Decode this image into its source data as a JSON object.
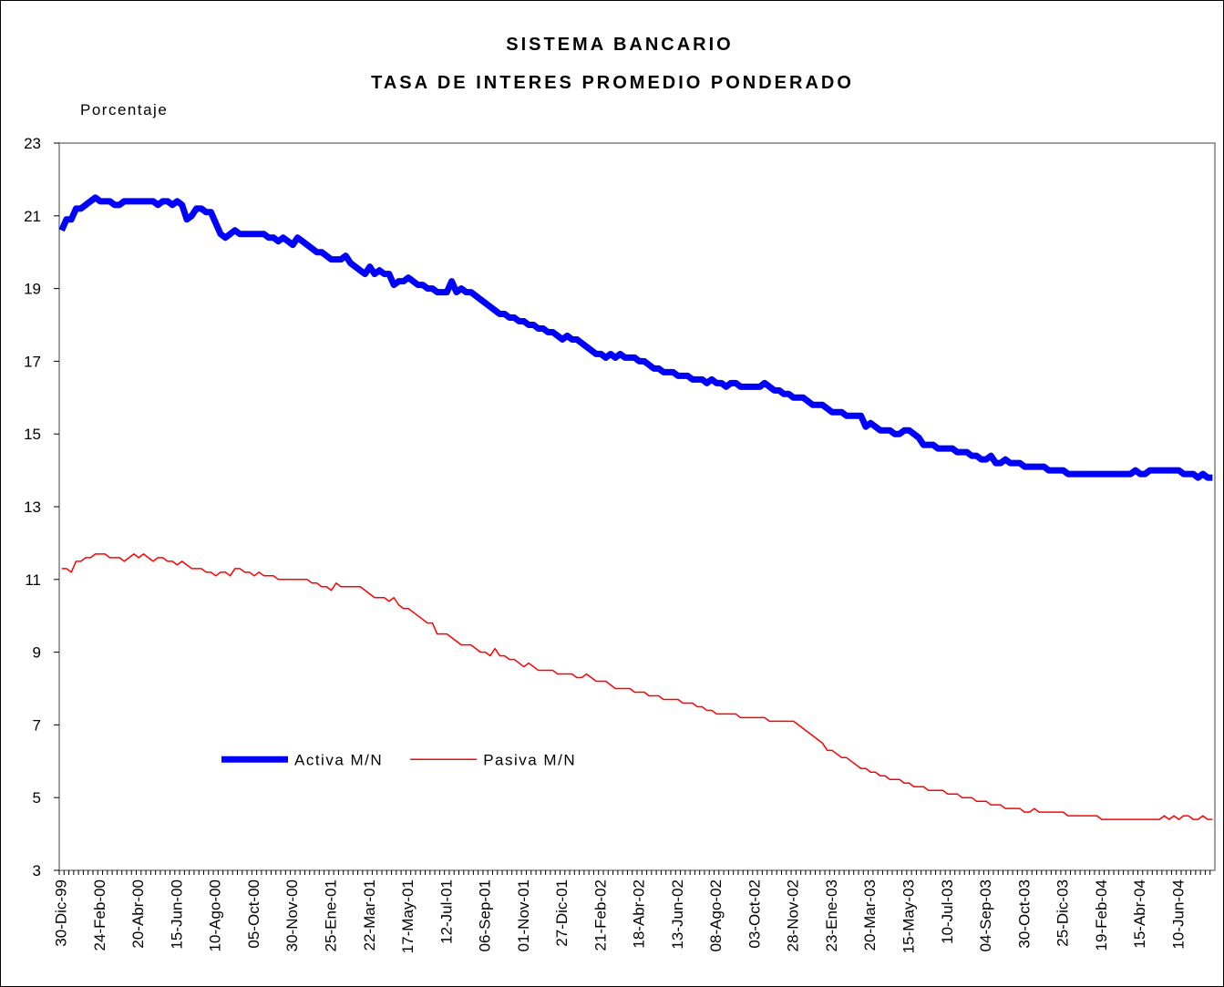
{
  "chart_data": {
    "type": "line",
    "title": "SISTEMA BANCARIO",
    "subtitle": "TASA DE INTERES PROMEDIO PONDERADO",
    "y_label": "Porcentaje",
    "ylim": [
      3,
      23
    ],
    "yticks": [
      3,
      5,
      7,
      9,
      11,
      13,
      15,
      17,
      19,
      21,
      23
    ],
    "legend": "lower-left",
    "categories": [
      "30-Dic-99",
      null,
      null,
      null,
      null,
      null,
      null,
      null,
      "24-Feb-00",
      null,
      null,
      null,
      null,
      null,
      null,
      null,
      "20-Abr-00",
      null,
      null,
      null,
      null,
      null,
      null,
      null,
      "15-Jun-00",
      null,
      null,
      null,
      null,
      null,
      null,
      null,
      "10-Ago-00",
      null,
      null,
      null,
      null,
      null,
      null,
      null,
      "05-Oct-00",
      null,
      null,
      null,
      null,
      null,
      null,
      null,
      "30-Nov-00",
      null,
      null,
      null,
      null,
      null,
      null,
      null,
      "25-Ene-01",
      null,
      null,
      null,
      null,
      null,
      null,
      null,
      "22-Mar-01",
      null,
      null,
      null,
      null,
      null,
      null,
      null,
      "17-May-01",
      null,
      null,
      null,
      null,
      null,
      null,
      null,
      "12-Jul-01",
      null,
      null,
      null,
      null,
      null,
      null,
      null,
      "06-Sep-01",
      null,
      null,
      null,
      null,
      null,
      null,
      null,
      "01-Nov-01",
      null,
      null,
      null,
      null,
      null,
      null,
      null,
      "27-Dic-01",
      null,
      null,
      null,
      null,
      null,
      null,
      null,
      "21-Feb-02",
      null,
      null,
      null,
      null,
      null,
      null,
      null,
      "18-Abr-02",
      null,
      null,
      null,
      null,
      null,
      null,
      null,
      "13-Jun-02",
      null,
      null,
      null,
      null,
      null,
      null,
      null,
      "08-Ago-02",
      null,
      null,
      null,
      null,
      null,
      null,
      null,
      "03-Oct-02",
      null,
      null,
      null,
      null,
      null,
      null,
      null,
      "28-Nov-02",
      null,
      null,
      null,
      null,
      null,
      null,
      null,
      "23-Ene-03",
      null,
      null,
      null,
      null,
      null,
      null,
      null,
      "20-Mar-03",
      null,
      null,
      null,
      null,
      null,
      null,
      null,
      "15-May-03",
      null,
      null,
      null,
      null,
      null,
      null,
      null,
      "10-Jul-03",
      null,
      null,
      null,
      null,
      null,
      null,
      null,
      "04-Sep-03",
      null,
      null,
      null,
      null,
      null,
      null,
      null,
      "30-Oct-03",
      null,
      null,
      null,
      null,
      null,
      null,
      null,
      "25-Dic-03",
      null,
      null,
      null,
      null,
      null,
      null,
      null,
      "19-Feb-04",
      null,
      null,
      null,
      null,
      null,
      null,
      null,
      "15-Abr-04",
      null,
      null,
      null,
      null,
      null,
      null,
      null,
      "10-Jun-04",
      null,
      null,
      null,
      null,
      null,
      null,
      null
    ],
    "series": [
      {
        "name": "Activa M/N",
        "color": "#0000ff",
        "values": [
          20.6,
          20.9,
          20.9,
          21.2,
          21.2,
          21.3,
          21.4,
          21.5,
          21.4,
          21.4,
          21.4,
          21.3,
          21.3,
          21.4,
          21.4,
          21.4,
          21.4,
          21.4,
          21.4,
          21.4,
          21.3,
          21.4,
          21.4,
          21.3,
          21.4,
          21.3,
          20.9,
          21.0,
          21.2,
          21.2,
          21.1,
          21.1,
          20.8,
          20.5,
          20.4,
          20.5,
          20.6,
          20.5,
          20.5,
          20.5,
          20.5,
          20.5,
          20.5,
          20.4,
          20.4,
          20.3,
          20.4,
          20.3,
          20.2,
          20.4,
          20.3,
          20.2,
          20.1,
          20.0,
          20.0,
          19.9,
          19.8,
          19.8,
          19.8,
          19.9,
          19.7,
          19.6,
          19.5,
          19.4,
          19.6,
          19.4,
          19.5,
          19.4,
          19.4,
          19.1,
          19.2,
          19.2,
          19.3,
          19.2,
          19.1,
          19.1,
          19.0,
          19.0,
          18.9,
          18.9,
          18.9,
          19.2,
          18.9,
          19.0,
          18.9,
          18.9,
          18.8,
          18.7,
          18.6,
          18.5,
          18.4,
          18.3,
          18.3,
          18.2,
          18.2,
          18.1,
          18.1,
          18.0,
          18.0,
          17.9,
          17.9,
          17.8,
          17.8,
          17.7,
          17.6,
          17.7,
          17.6,
          17.6,
          17.5,
          17.4,
          17.3,
          17.2,
          17.2,
          17.1,
          17.2,
          17.1,
          17.2,
          17.1,
          17.1,
          17.1,
          17.0,
          17.0,
          16.9,
          16.8,
          16.8,
          16.7,
          16.7,
          16.7,
          16.6,
          16.6,
          16.6,
          16.5,
          16.5,
          16.5,
          16.4,
          16.5,
          16.4,
          16.4,
          16.3,
          16.4,
          16.4,
          16.3,
          16.3,
          16.3,
          16.3,
          16.3,
          16.4,
          16.3,
          16.2,
          16.2,
          16.1,
          16.1,
          16.0,
          16.0,
          16.0,
          15.9,
          15.8,
          15.8,
          15.8,
          15.7,
          15.6,
          15.6,
          15.6,
          15.5,
          15.5,
          15.5,
          15.5,
          15.2,
          15.3,
          15.2,
          15.1,
          15.1,
          15.1,
          15.0,
          15.0,
          15.1,
          15.1,
          15.0,
          14.9,
          14.7,
          14.7,
          14.7,
          14.6,
          14.6,
          14.6,
          14.6,
          14.5,
          14.5,
          14.5,
          14.4,
          14.4,
          14.3,
          14.3,
          14.4,
          14.2,
          14.2,
          14.3,
          14.2,
          14.2,
          14.2,
          14.1,
          14.1,
          14.1,
          14.1,
          14.1,
          14.0,
          14.0,
          14.0,
          14.0,
          13.9,
          13.9,
          13.9,
          13.9,
          13.9,
          13.9,
          13.9,
          13.9,
          13.9,
          13.9,
          13.9,
          13.9,
          13.9,
          13.9,
          14.0,
          13.9,
          13.9,
          14.0,
          14.0,
          14.0,
          14.0,
          14.0,
          14.0,
          14.0,
          13.9,
          13.9,
          13.9,
          13.8,
          13.9,
          13.8,
          13.8
        ]
      },
      {
        "name": "Pasiva M/N",
        "color": "#ff0000",
        "values": [
          11.3,
          11.3,
          11.2,
          11.5,
          11.5,
          11.6,
          11.6,
          11.7,
          11.7,
          11.7,
          11.6,
          11.6,
          11.6,
          11.5,
          11.6,
          11.7,
          11.6,
          11.7,
          11.6,
          11.5,
          11.6,
          11.6,
          11.5,
          11.5,
          11.4,
          11.5,
          11.4,
          11.3,
          11.3,
          11.3,
          11.2,
          11.2,
          11.1,
          11.2,
          11.2,
          11.1,
          11.3,
          11.3,
          11.2,
          11.2,
          11.1,
          11.2,
          11.1,
          11.1,
          11.1,
          11.0,
          11.0,
          11.0,
          11.0,
          11.0,
          11.0,
          11.0,
          10.9,
          10.9,
          10.8,
          10.8,
          10.7,
          10.9,
          10.8,
          10.8,
          10.8,
          10.8,
          10.8,
          10.7,
          10.6,
          10.5,
          10.5,
          10.5,
          10.4,
          10.5,
          10.3,
          10.2,
          10.2,
          10.1,
          10.0,
          9.9,
          9.8,
          9.8,
          9.5,
          9.5,
          9.5,
          9.4,
          9.3,
          9.2,
          9.2,
          9.2,
          9.1,
          9.0,
          9.0,
          8.9,
          9.1,
          8.9,
          8.9,
          8.8,
          8.8,
          8.7,
          8.6,
          8.7,
          8.6,
          8.5,
          8.5,
          8.5,
          8.5,
          8.4,
          8.4,
          8.4,
          8.4,
          8.3,
          8.3,
          8.4,
          8.3,
          8.2,
          8.2,
          8.2,
          8.1,
          8.0,
          8.0,
          8.0,
          8.0,
          7.9,
          7.9,
          7.9,
          7.8,
          7.8,
          7.8,
          7.7,
          7.7,
          7.7,
          7.7,
          7.6,
          7.6,
          7.6,
          7.5,
          7.5,
          7.4,
          7.4,
          7.3,
          7.3,
          7.3,
          7.3,
          7.3,
          7.2,
          7.2,
          7.2,
          7.2,
          7.2,
          7.2,
          7.1,
          7.1,
          7.1,
          7.1,
          7.1,
          7.1,
          7.0,
          6.9,
          6.8,
          6.7,
          6.6,
          6.5,
          6.3,
          6.3,
          6.2,
          6.1,
          6.1,
          6.0,
          5.9,
          5.8,
          5.8,
          5.7,
          5.7,
          5.6,
          5.6,
          5.5,
          5.5,
          5.5,
          5.4,
          5.4,
          5.3,
          5.3,
          5.3,
          5.2,
          5.2,
          5.2,
          5.2,
          5.1,
          5.1,
          5.1,
          5.0,
          5.0,
          5.0,
          4.9,
          4.9,
          4.9,
          4.8,
          4.8,
          4.8,
          4.7,
          4.7,
          4.7,
          4.7,
          4.6,
          4.6,
          4.7,
          4.6,
          4.6,
          4.6,
          4.6,
          4.6,
          4.6,
          4.5,
          4.5,
          4.5,
          4.5,
          4.5,
          4.5,
          4.5,
          4.4,
          4.4,
          4.4,
          4.4,
          4.4,
          4.4,
          4.4,
          4.4,
          4.4,
          4.4,
          4.4,
          4.4,
          4.4,
          4.5,
          4.4,
          4.5,
          4.4,
          4.5,
          4.5,
          4.4,
          4.4,
          4.5,
          4.4,
          4.4
        ]
      }
    ]
  }
}
